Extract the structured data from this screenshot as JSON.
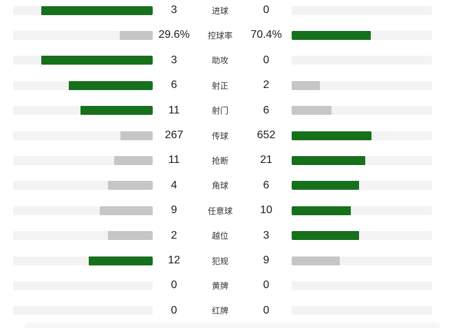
{
  "colors": {
    "win_bar": "#16701c",
    "lose_bar": "#c6c6c6",
    "track": "#f3f3f3",
    "value_text": "#1b1b1b",
    "label_text": "#333333"
  },
  "chart_data": {
    "type": "bar",
    "subtype": "two-sided-comparison",
    "title": "",
    "legend_position": "none",
    "bar_max_fill_ratio": 0.8,
    "bar_fill_rule": "bar width = value / (left_value + right_value) * 80% of track; larger value colored green, smaller gray, zero = empty track",
    "categories": [
      "进球",
      "控球率",
      "助攻",
      "射正",
      "射门",
      "传球",
      "抢断",
      "角球",
      "任意球",
      "越位",
      "犯规",
      "黄牌",
      "红牌"
    ],
    "series": [
      {
        "name": "left-team",
        "display": [
          "3",
          "29.6%",
          "3",
          "6",
          "11",
          "267",
          "11",
          "4",
          "9",
          "2",
          "12",
          "0",
          "0"
        ],
        "values": [
          3,
          29.6,
          3,
          6,
          11,
          267,
          11,
          4,
          9,
          2,
          12,
          0,
          0
        ]
      },
      {
        "name": "right-team",
        "display": [
          "0",
          "70.4%",
          "0",
          "2",
          "6",
          "652",
          "21",
          "6",
          "10",
          "3",
          "9",
          "0",
          "0"
        ],
        "values": [
          0,
          70.4,
          0,
          2,
          6,
          652,
          21,
          6,
          10,
          3,
          9,
          0,
          0
        ]
      }
    ],
    "rows": [
      {
        "label": "进球",
        "left": "3",
        "right": "0",
        "left_value": 3,
        "right_value": 0
      },
      {
        "label": "控球率",
        "left": "29.6%",
        "right": "70.4%",
        "left_value": 29.6,
        "right_value": 70.4
      },
      {
        "label": "助攻",
        "left": "3",
        "right": "0",
        "left_value": 3,
        "right_value": 0
      },
      {
        "label": "射正",
        "left": "6",
        "right": "2",
        "left_value": 6,
        "right_value": 2
      },
      {
        "label": "射门",
        "left": "11",
        "right": "6",
        "left_value": 11,
        "right_value": 6
      },
      {
        "label": "传球",
        "left": "267",
        "right": "652",
        "left_value": 267,
        "right_value": 652
      },
      {
        "label": "抢断",
        "left": "11",
        "right": "21",
        "left_value": 11,
        "right_value": 21
      },
      {
        "label": "角球",
        "left": "4",
        "right": "6",
        "left_value": 4,
        "right_value": 6
      },
      {
        "label": "任意球",
        "left": "9",
        "right": "10",
        "left_value": 9,
        "right_value": 10
      },
      {
        "label": "越位",
        "left": "2",
        "right": "3",
        "left_value": 2,
        "right_value": 3
      },
      {
        "label": "犯规",
        "left": "12",
        "right": "9",
        "left_value": 12,
        "right_value": 9
      },
      {
        "label": "黄牌",
        "left": "0",
        "right": "0",
        "left_value": 0,
        "right_value": 0
      },
      {
        "label": "红牌",
        "left": "0",
        "right": "0",
        "left_value": 0,
        "right_value": 0
      }
    ]
  }
}
